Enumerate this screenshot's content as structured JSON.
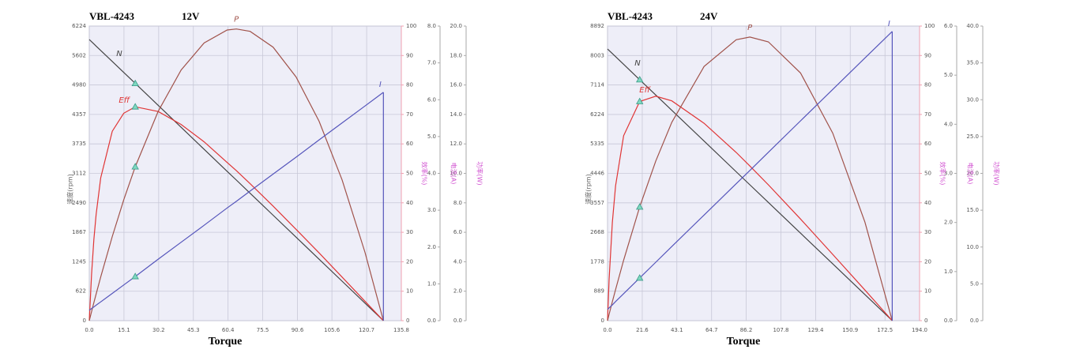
{
  "chart_data": [
    {
      "type": "line",
      "title": "VBL-4243",
      "subtitle": "12V",
      "xlabel": "Torque",
      "ylabel": "速度(rpm)",
      "y2label": "效率(%)",
      "y3label": "电流(A)",
      "y4label": "功率(W)",
      "x": [
        0,
        1,
        2,
        3,
        5,
        10,
        15,
        20,
        30,
        40,
        50,
        60,
        64,
        70,
        80,
        90,
        100,
        110,
        120,
        128
      ],
      "marker_x": 20,
      "xlim": [
        0,
        135.8
      ],
      "xticks": [
        {
          "value": 0,
          "label": "0.0"
        },
        15.1,
        30.2,
        45.3,
        60.4,
        75.5,
        90.6,
        105.6,
        120.7,
        135.8
      ],
      "ylim": [
        0,
        6224
      ],
      "yticks": [
        0,
        622,
        1245,
        1867,
        2490,
        3112,
        3735,
        4357,
        4980,
        5602,
        6224
      ],
      "y2lim": [
        0,
        100
      ],
      "y2ticks": [
        0,
        10,
        20,
        30,
        40,
        50,
        60,
        70,
        80,
        90,
        100
      ],
      "y3lim": [
        0,
        8
      ],
      "y3ticks": [
        {
          "value": 0,
          "label": "0.0"
        },
        {
          "value": 1,
          "label": "1.0"
        },
        {
          "value": 2,
          "label": "2.0"
        },
        {
          "value": 3,
          "label": "3.0"
        },
        {
          "value": 4,
          "label": "4.0"
        },
        {
          "value": 5,
          "label": "5.0"
        },
        {
          "value": 6,
          "label": "6.0"
        },
        {
          "value": 7,
          "label": "7.0"
        },
        {
          "value": 8,
          "label": "8.0"
        }
      ],
      "y4lim": [
        0,
        20
      ],
      "y4ticks": [
        {
          "value": 0,
          "label": "0.0"
        },
        {
          "value": 2,
          "label": "2.0"
        },
        {
          "value": 4,
          "label": "4.0"
        },
        {
          "value": 6,
          "label": "6.0"
        },
        {
          "value": 8,
          "label": "8.0"
        },
        {
          "value": 10,
          "label": "10.0"
        },
        {
          "value": 12,
          "label": "12.0"
        },
        {
          "value": 14,
          "label": "14.0"
        },
        {
          "value": 16,
          "label": "16.0"
        },
        {
          "value": 18,
          "label": "18.0"
        },
        {
          "value": 20,
          "label": "20.0"
        }
      ],
      "grid": true,
      "series": [
        {
          "name": "N",
          "color": "#444444",
          "axis": "y",
          "values": [
            5940,
            5894,
            5847,
            5801,
            5708,
            5476,
            5244,
            5012,
            4548,
            4084,
            3620,
            3156,
            2970,
            2692,
            2228,
            1764,
            1299,
            835,
            371,
            0
          ]
        },
        {
          "name": "Eff",
          "color": "#e03535",
          "axis": "y2",
          "values": [
            0,
            15.7,
            27.5,
            36.1,
            48.5,
            64.3,
            70.4,
            72.6,
            71.0,
            66.6,
            60.7,
            53.7,
            50.9,
            46.5,
            38.9,
            31.0,
            23.0,
            14.8,
            6.6,
            0
          ]
        },
        {
          "name": "P",
          "color": "#a0524a",
          "axis": "y4",
          "values": [
            0,
            0.61,
            1.22,
            1.81,
            2.97,
            5.71,
            8.2,
            10.45,
            14.22,
            17.02,
            18.86,
            19.73,
            19.8,
            19.64,
            18.57,
            16.54,
            13.54,
            9.56,
            4.64,
            0
          ]
        },
        {
          "name": "I",
          "color": "#5555bb",
          "axis": "y3",
          "values": [
            0.28,
            0.33,
            0.37,
            0.42,
            0.51,
            0.74,
            0.97,
            1.2,
            1.67,
            2.13,
            2.59,
            3.06,
            3.24,
            3.52,
            3.98,
            4.44,
            4.91,
            5.37,
            5.83,
            6.2
          ]
        }
      ]
    },
    {
      "type": "line",
      "title": "VBL-4243",
      "subtitle": "24V",
      "xlabel": "Torque",
      "ylabel": "速度(rpm)",
      "y2label": "效率(%)",
      "y3label": "电流(A)",
      "y4label": "功率(W)",
      "x": [
        0,
        1,
        3,
        5,
        10,
        20,
        30,
        40,
        60,
        80,
        88.5,
        100,
        120,
        140,
        160,
        177
      ],
      "marker_x": 20,
      "xlim": [
        0,
        194
      ],
      "xticks": [
        {
          "value": 0,
          "label": "0.0"
        },
        21.6,
        43.1,
        64.7,
        86.2,
        107.8,
        129.4,
        150.9,
        172.5,
        {
          "value": 194,
          "label": "194.0"
        }
      ],
      "ylim": [
        0,
        8892
      ],
      "yticks": [
        0,
        889,
        1778,
        2668,
        3557,
        4446,
        5335,
        6224,
        7114,
        8003,
        8892
      ],
      "y2lim": [
        0,
        100
      ],
      "y2ticks": [
        0,
        10,
        20,
        30,
        40,
        50,
        60,
        70,
        80,
        90,
        100
      ],
      "y3lim": [
        0,
        6
      ],
      "y3ticks": [
        {
          "value": 0,
          "label": "0.0"
        },
        {
          "value": 1,
          "label": "1.0"
        },
        {
          "value": 2,
          "label": "2.0"
        },
        {
          "value": 3,
          "label": "3.0"
        },
        {
          "value": 4,
          "label": "4.0"
        },
        {
          "value": 5,
          "label": "5.0"
        },
        {
          "value": 6,
          "label": "6.0"
        }
      ],
      "y4lim": [
        0,
        40
      ],
      "y4ticks": [
        {
          "value": 0,
          "label": "0.0"
        },
        {
          "value": 5,
          "label": "5.0"
        },
        {
          "value": 10,
          "label": "10.0"
        },
        {
          "value": 15,
          "label": "15.0"
        },
        {
          "value": 20,
          "label": "20.0"
        },
        {
          "value": 25,
          "label": "25.0"
        },
        {
          "value": 30,
          "label": "30.0"
        },
        {
          "value": 35,
          "label": "35.0"
        },
        {
          "value": 40,
          "label": "40.0"
        }
      ],
      "grid": true,
      "series": [
        {
          "name": "N",
          "color": "#444444",
          "axis": "y",
          "values": [
            8201,
            8155,
            8062,
            7969,
            7738,
            7274,
            6811,
            6348,
            5421,
            4494,
            4101,
            3568,
            2641,
            1714,
            788,
            0
          ]
        },
        {
          "name": "Eff",
          "color": "#e03535",
          "axis": "y2",
          "values": [
            0,
            14.0,
            33.3,
            45.8,
            62.8,
            74.4,
            76.2,
            74.6,
            67.0,
            57.1,
            52.5,
            46.1,
            34.5,
            22.5,
            10.4,
            0
          ]
        },
        {
          "name": "P",
          "color": "#a0524a",
          "axis": "y4",
          "values": [
            0,
            0.87,
            2.57,
            4.23,
            8.21,
            15.44,
            21.68,
            26.94,
            34.51,
            38.15,
            38.51,
            37.86,
            33.63,
            25.46,
            13.38,
            0
          ]
        },
        {
          "name": "I",
          "color": "#5555bb",
          "axis": "y3",
          "values": [
            0.23,
            0.26,
            0.32,
            0.39,
            0.55,
            0.87,
            1.19,
            1.51,
            2.15,
            2.79,
            3.06,
            3.43,
            4.07,
            4.71,
            5.35,
            5.89
          ]
        }
      ]
    }
  ]
}
